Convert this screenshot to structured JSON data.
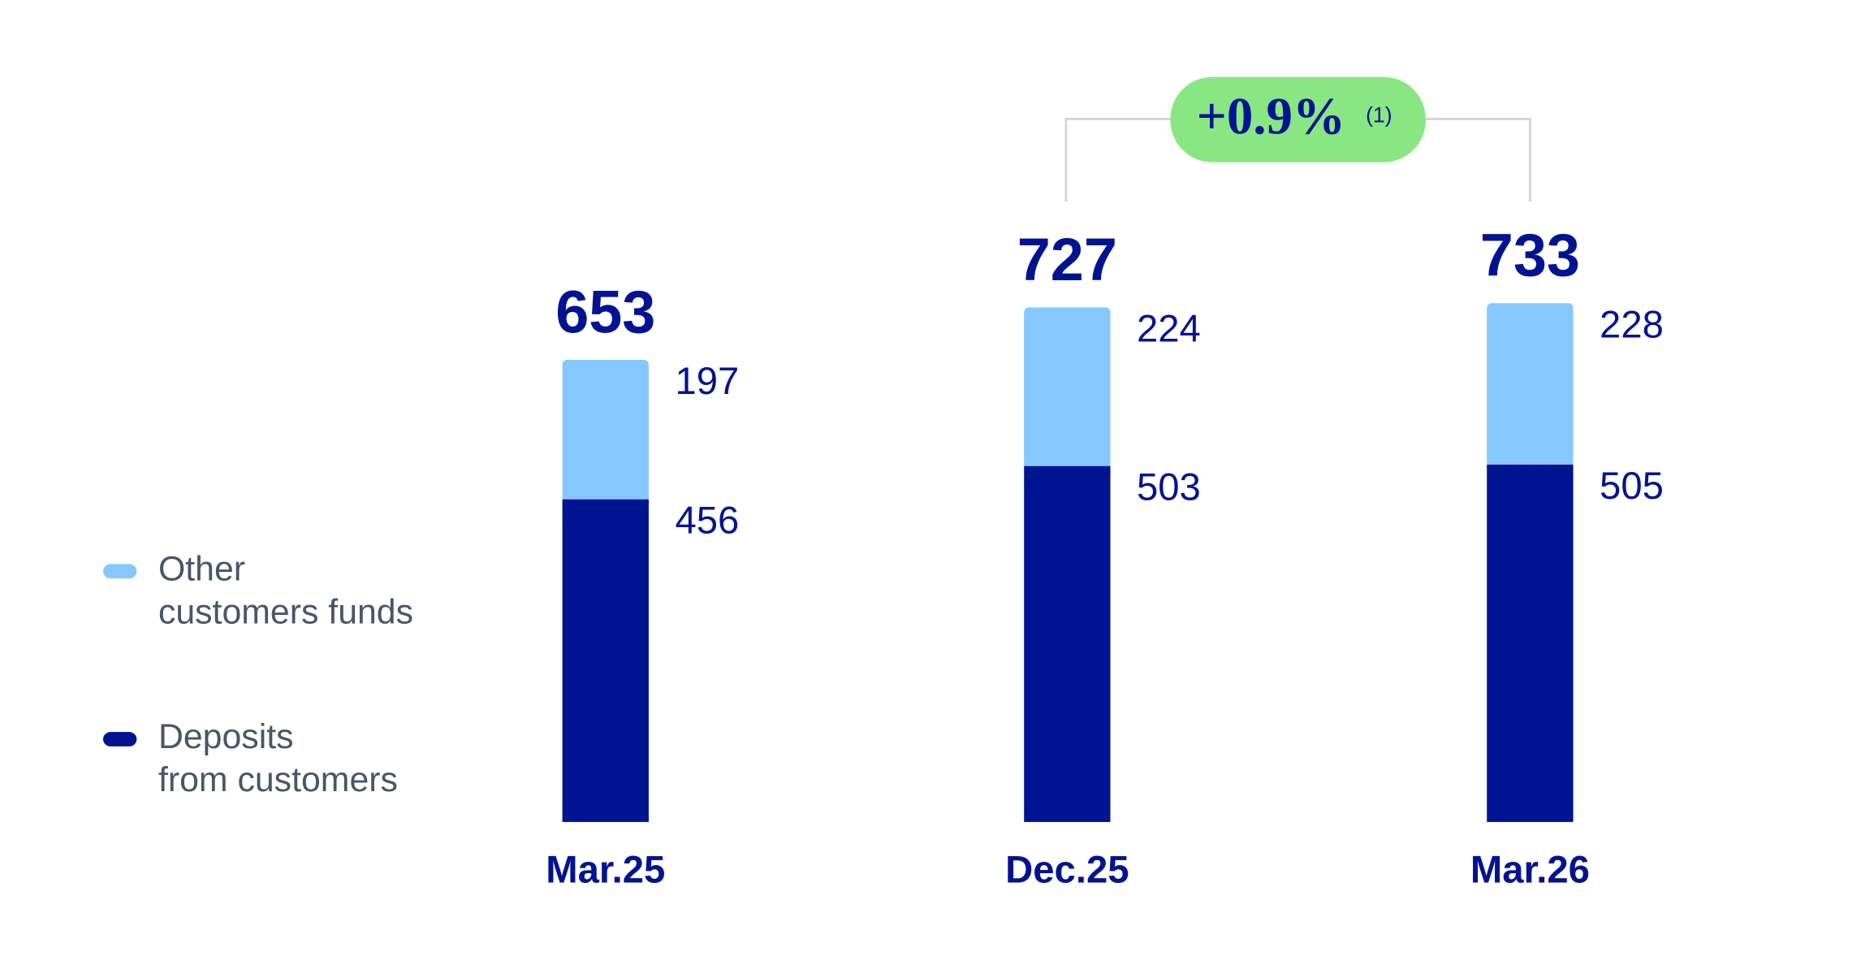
{
  "chart_data": {
    "type": "stacked_bar",
    "categories": [
      "Mar.25",
      "Dec.25",
      "Mar.26"
    ],
    "series": [
      {
        "name": "Deposits\nfrom customers",
        "color": "#001391",
        "values": [
          456,
          503,
          505
        ]
      },
      {
        "name": "Other\ncustomers funds",
        "color": "#85c8ff",
        "values": [
          197,
          224,
          228
        ]
      }
    ],
    "totals": [
      653,
      727,
      733
    ],
    "annotation": {
      "text": "+0.9%",
      "note": "(1)",
      "color": "#88e783"
    }
  }
}
